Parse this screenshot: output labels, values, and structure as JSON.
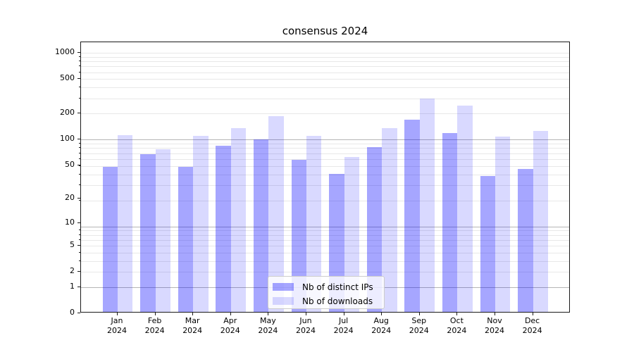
{
  "chart_data": {
    "type": "bar",
    "title": "consensus 2024",
    "categories": [
      "Jan",
      "Feb",
      "Mar",
      "Apr",
      "May",
      "Jun",
      "Jul",
      "Aug",
      "Sep",
      "Oct",
      "Nov",
      "Dec"
    ],
    "x_tick_second_line": "2024",
    "series": [
      {
        "name": "Nb of distinct IPs",
        "color": "rgba(0,0,255,0.35)",
        "values": [
          46,
          65,
          46,
          81,
          97,
          56,
          38,
          78,
          163,
          114,
          36,
          43
        ]
      },
      {
        "name": "Nb of downloads",
        "color": "rgba(0,0,255,0.15)",
        "values": [
          107,
          74,
          106,
          130,
          178,
          106,
          60,
          130,
          287,
          238,
          104,
          120
        ]
      }
    ],
    "y_ticks": [
      0,
      1,
      2,
      5,
      10,
      20,
      50,
      100,
      200,
      500,
      1000
    ],
    "y_scale": "log10(value+1)",
    "ylim": [
      0,
      1320
    ],
    "grid": true,
    "grid_major_levels": [
      1,
      9,
      99
    ],
    "grid_minor_levels_u": [
      3,
      4,
      5,
      6,
      7,
      8,
      9,
      20,
      30,
      40,
      50,
      60,
      70,
      80,
      90,
      200,
      300,
      400,
      500,
      600,
      700,
      800,
      900,
      1000
    ],
    "legend_position": "lower center",
    "colors": {
      "axis": "#1a1a1a",
      "grid_major": "#b5b5b5",
      "grid_minor": "#e8e8e8",
      "text": "#000000"
    }
  }
}
